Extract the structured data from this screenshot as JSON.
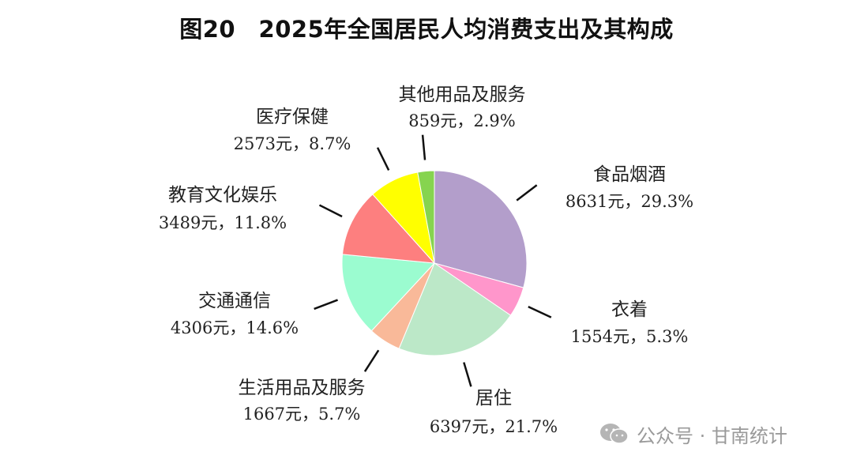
{
  "title": "图20　2025年全国居民人均消费支出及其构成",
  "chart_data": {
    "type": "pie",
    "title": "图20　2025年全国居民人均消费支出及其构成",
    "unit": "元",
    "slices": [
      {
        "name": "食品烟酒",
        "value": 8631,
        "percent_label": "8631元，29.3%",
        "percent": 29.3,
        "color": "#b39ecb"
      },
      {
        "name": "衣着",
        "value": 1554,
        "percent_label": "1554元，5.3%",
        "percent": 5.3,
        "color": "#ff96cb"
      },
      {
        "name": "居住",
        "value": 6397,
        "percent_label": "6397元，21.7%",
        "percent": 21.7,
        "color": "#bce8c8"
      },
      {
        "name": "生活用品及服务",
        "value": 1667,
        "percent_label": "1667元，5.7%",
        "percent": 5.7,
        "color": "#f9b999"
      },
      {
        "name": "交通通信",
        "value": 4306,
        "percent_label": "4306元，14.6%",
        "percent": 14.6,
        "color": "#9bfcd0"
      },
      {
        "name": "教育文化娱乐",
        "value": 3489,
        "percent_label": "3489元，11.8%",
        "percent": 11.8,
        "color": "#fd7f7f"
      },
      {
        "name": "医疗保健",
        "value": 2573,
        "percent_label": "2573元，8.7%",
        "percent": 8.7,
        "color": "#ffff00"
      },
      {
        "name": "其他用品及服务",
        "value": 859,
        "percent_label": "859元，2.9%",
        "percent": 2.9,
        "color": "#86d44f"
      }
    ]
  },
  "watermark": {
    "text": "公众号 · 甘南统计",
    "icon": "wechat-icon"
  }
}
